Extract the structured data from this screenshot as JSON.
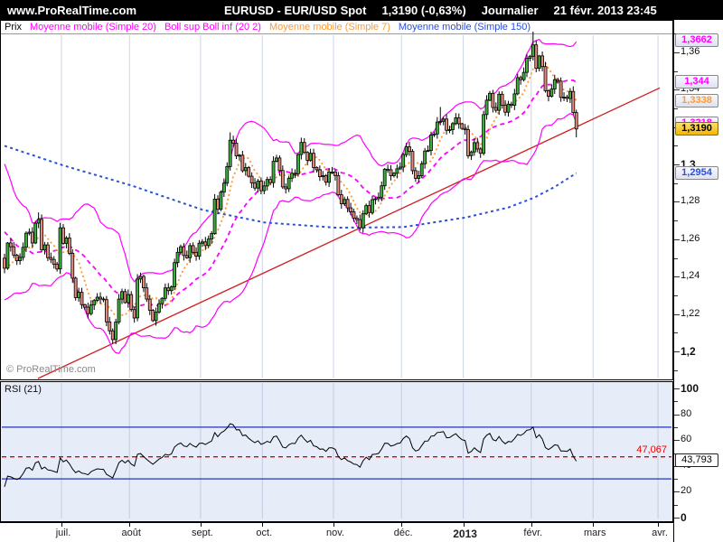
{
  "topbar": {
    "brand": "www.ProRealTime.com",
    "title": "EURUSD - EUR/USD Spot",
    "price": "1,3190 (-0,63%)",
    "period": "Journalier",
    "datetime": "21 févr. 2013 23:45"
  },
  "legend": {
    "prix": "Prix",
    "items": [
      {
        "label": "Moyenne mobile (Simple 20)",
        "color": "#ff00ff"
      },
      {
        "label": "Boll sup Boll inf (20 2)",
        "color": "#ff00ff"
      },
      {
        "label": "Moyenne mobile (Simple 7)",
        "color": "#ff9933"
      },
      {
        "label": "Moyenne mobile (Simple 150)",
        "color": "#2b4fd7"
      }
    ]
  },
  "watermark": "© ProRealTime.com",
  "rsi_panel": {
    "label": "RSI (21)",
    "alert_value": "47,067",
    "last_value": "43,793",
    "ticks": [
      {
        "label": "100",
        "value": 100,
        "bold": true
      },
      {
        "label": "80",
        "value": 80
      },
      {
        "label": "60",
        "value": 60
      },
      {
        "label": "40",
        "value": 40
      },
      {
        "label": "20",
        "value": 20
      },
      {
        "label": "0",
        "value": 0,
        "bold": true
      }
    ]
  },
  "price_axis": {
    "ticks": [
      {
        "label": "1,36",
        "value": 1.36
      },
      {
        "label": "1,34",
        "value": 1.34
      },
      {
        "label": "1,32",
        "value": 1.32
      },
      {
        "label": "1,3",
        "value": 1.3,
        "bold": true
      },
      {
        "label": "1,28",
        "value": 1.28
      },
      {
        "label": "1,26",
        "value": 1.26
      },
      {
        "label": "1,24",
        "value": 1.24
      },
      {
        "label": "1,22",
        "value": 1.22
      },
      {
        "label": "1,2",
        "value": 1.2,
        "bold": true
      }
    ]
  },
  "value_labels": [
    {
      "kind": "boll-sup",
      "text": "1,3662",
      "value": 1.3662,
      "color": "#ff00ff"
    },
    {
      "kind": "ma20",
      "text": "1,344",
      "value": 1.344,
      "color": "#ff00ff"
    },
    {
      "kind": "ma7",
      "text": "1,3338",
      "value": 1.3338,
      "color": "#ff9933"
    },
    {
      "kind": "boll-inf",
      "text": "1,3218",
      "value": 1.3218,
      "color": "#ff00ff"
    },
    {
      "kind": "last-price",
      "text": "1,3190",
      "value": 1.319,
      "color": "#000000",
      "bg": "gold"
    },
    {
      "kind": "ma150",
      "text": "1,2954",
      "value": 1.2954,
      "color": "#2b4fd7"
    },
    {
      "kind": "rsi-value",
      "text": "43,793",
      "rsi": 43.793,
      "color": "#000000"
    }
  ],
  "chart_data": {
    "type": "candlestick",
    "title": "EURUSD - EUR/USD Spot, Journalier (daily), juin 2012 - février 2013",
    "last_price": 1.319,
    "ylim": [
      1.185,
      1.374
    ],
    "grid": "vertical-months",
    "months": [
      {
        "label": "juil.",
        "index": 19
      },
      {
        "label": "août",
        "index": 41
      },
      {
        "label": "sept.",
        "index": 64
      },
      {
        "label": "oct.",
        "index": 84
      },
      {
        "label": "nov.",
        "index": 107
      },
      {
        "label": "déc.",
        "index": 129
      },
      {
        "label": "2013",
        "index": 149,
        "bold": true
      },
      {
        "label": "févr.",
        "index": 171
      },
      {
        "label": "mars",
        "index": 191
      },
      {
        "label": "avr.",
        "index": 212
      }
    ],
    "pre_closes": [
      1.3056,
      1.3003,
      1.2932,
      1.293,
      1.2917,
      1.2824,
      1.273,
      1.2716,
      1.2694,
      1.278,
      1.2812,
      1.268,
      1.2583,
      1.2532,
      1.2517,
      1.2538,
      1.2503,
      1.2365,
      1.236,
      1.2435,
      1.2499
    ],
    "closes": [
      1.2445,
      1.258,
      1.256,
      1.2515,
      1.2485,
      1.2503,
      1.2557,
      1.2632,
      1.2638,
      1.258,
      1.2686,
      1.2706,
      1.2543,
      1.257,
      1.2502,
      1.2492,
      1.2466,
      1.2441,
      1.2661,
      1.2578,
      1.2607,
      1.2525,
      1.2392,
      1.2288,
      1.2316,
      1.225,
      1.2237,
      1.2202,
      1.2249,
      1.2272,
      1.229,
      1.2281,
      1.2277,
      1.2158,
      1.211,
      1.2063,
      1.2157,
      1.228,
      1.232,
      1.2261,
      1.2304,
      1.2224,
      1.2179,
      1.2387,
      1.2401,
      1.234,
      1.228,
      1.222,
      1.2165,
      1.221,
      1.2255,
      1.2284,
      1.234,
      1.2325,
      1.2345,
      1.2475,
      1.253,
      1.256,
      1.2513,
      1.2501,
      1.2566,
      1.253,
      1.2509,
      1.2579,
      1.2586,
      1.2566,
      1.2601,
      1.2631,
      1.2815,
      1.276,
      1.2852,
      1.29,
      1.2989,
      1.313,
      1.3114,
      1.3046,
      1.305,
      1.2967,
      1.2983,
      1.2937,
      1.2901,
      1.2874,
      1.2911,
      1.286,
      1.2885,
      1.292,
      1.2903,
      1.3017,
      1.3035,
      1.2968,
      1.288,
      1.287,
      1.2927,
      1.2953,
      1.295,
      1.3053,
      1.3118,
      1.3065,
      1.3023,
      1.306,
      1.2984,
      1.2972,
      1.2935,
      1.294,
      1.2905,
      1.296,
      1.296,
      1.2941,
      1.2838,
      1.279,
      1.2813,
      1.2768,
      1.2747,
      1.2713,
      1.2705,
      1.2661,
      1.2736,
      1.278,
      1.2743,
      1.2812,
      1.2817,
      1.2825,
      1.2886,
      1.2975,
      1.2972,
      1.294,
      1.2953,
      1.2977,
      1.2986,
      1.3053,
      1.3095,
      1.307,
      1.2967,
      1.2926,
      1.294,
      1.3004,
      1.3072,
      1.3075,
      1.3158,
      1.3163,
      1.3227,
      1.3231,
      1.3243,
      1.3183,
      1.3186,
      1.3219,
      1.325,
      1.3218,
      1.3193,
      1.3186,
      1.3047,
      1.3067,
      1.3117,
      1.3083,
      1.306,
      1.3267,
      1.3344,
      1.3381,
      1.3305,
      1.329,
      1.3376,
      1.3317,
      1.328,
      1.3323,
      1.3317,
      1.3378,
      1.3465,
      1.3454,
      1.3493,
      1.3568,
      1.3579,
      1.364,
      1.3515,
      1.3581,
      1.3524,
      1.3395,
      1.3365,
      1.3404,
      1.3454,
      1.3446,
      1.3359,
      1.336,
      1.3353,
      1.3391,
      1.3278,
      1.319
    ],
    "wick_overrides": {
      "11": [
        1.2744,
        null
      ],
      "35": [
        null,
        1.2042
      ],
      "73": [
        1.3172,
        null
      ],
      "141": [
        1.3308,
        null
      ],
      "171": [
        1.3711,
        null
      ],
      "185": [
        null,
        1.3145
      ]
    },
    "candle_colors": {
      "up": "#3cb23c",
      "down": "#e58b7e",
      "border": "#000000"
    },
    "indicators": {
      "ma7": {
        "type": "sma",
        "period": 7,
        "color": "#ff9933",
        "style": "dotted",
        "last_value": 1.3338
      },
      "ma20": {
        "type": "sma",
        "period": 20,
        "color": "#ff00ff",
        "style": "dashed",
        "last_value": 1.344
      },
      "bollinger": {
        "period": 20,
        "deviations": 2,
        "color": "#ff00ff",
        "style": "solid",
        "upper_last": 1.3662,
        "lower_last": 1.3218
      },
      "ma150": {
        "type": "sma",
        "period": 150,
        "color": "#2b4fd7",
        "style": "dotted",
        "last_value": 1.2954,
        "points": [
          [
            0,
            1.31
          ],
          [
            19,
            1.2995
          ],
          [
            41,
            1.2888
          ],
          [
            64,
            1.2758
          ],
          [
            84,
            1.269
          ],
          [
            107,
            1.2662
          ],
          [
            129,
            1.2665
          ],
          [
            149,
            1.2716
          ],
          [
            163,
            1.277
          ],
          [
            171,
            1.282
          ],
          [
            178,
            1.288
          ],
          [
            185,
            1.2954
          ]
        ]
      },
      "trendline": {
        "color": "#d02020",
        "points": [
          [
            35,
            1.2042
          ],
          [
            212,
            1.341
          ]
        ]
      }
    },
    "rsi": {
      "period": 21,
      "overbought": 70,
      "oversold": 30,
      "overbought_color": "#2233bb",
      "alert_level": 47.067,
      "alert_color": "#e80000",
      "last_value": 43.793,
      "ylim": [
        0,
        100
      ]
    }
  }
}
